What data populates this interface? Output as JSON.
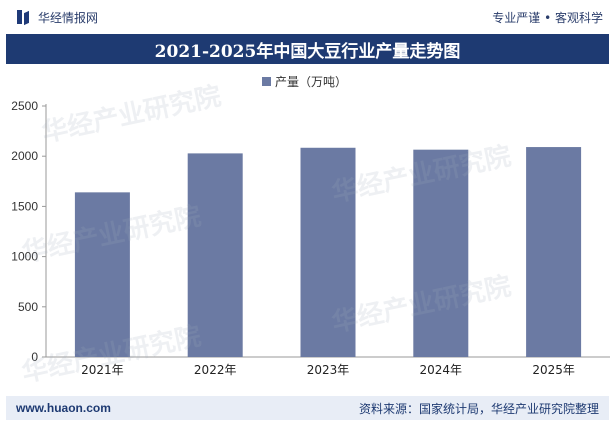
{
  "header": {
    "brand": "华经情报网",
    "tagline": "专业严谨 • 客观科学"
  },
  "footer": {
    "website": "www.huaon.com",
    "source": "资料来源：国家统计局，华经产业研究院整理"
  },
  "watermark": {
    "text": "华经产业研究院"
  },
  "colors": {
    "bar": "#6b7aa3",
    "title_bg": "#1e3a72"
  },
  "chart_data": {
    "type": "bar",
    "title": "2021-2025年中国大豆行业产量走势图",
    "categories": [
      "2021年",
      "2022年",
      "2023年",
      "2024年",
      "2025年"
    ],
    "series": [
      {
        "name": "产量（万吨）",
        "values": [
          1640,
          2028,
          2084,
          2065,
          2091
        ]
      }
    ],
    "ylim": [
      0,
      2500
    ],
    "yticks": [
      0,
      500,
      1000,
      1500,
      2000,
      2500
    ],
    "grid": false,
    "legend": "top-center"
  }
}
